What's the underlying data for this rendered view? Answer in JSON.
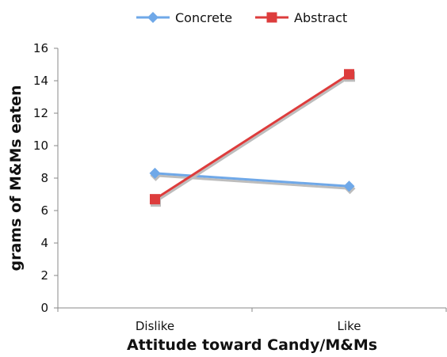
{
  "chart_data": {
    "type": "line",
    "categories": [
      "Dislike",
      "Like"
    ],
    "series": [
      {
        "name": "Concrete",
        "values": [
          8.3,
          7.5
        ],
        "color": "#6fa8e8",
        "marker": "diamond"
      },
      {
        "name": "Abstract",
        "values": [
          6.7,
          14.4
        ],
        "color": "#dd3c3c",
        "marker": "square"
      }
    ],
    "title": "",
    "xlabel": "Attitude toward Candy/M&Ms",
    "ylabel": "grams of M&Ms eaten",
    "ylim": [
      0,
      16
    ],
    "yticks": [
      0,
      2,
      4,
      6,
      8,
      10,
      12,
      14,
      16
    ],
    "grid": false,
    "legend_position": "top"
  }
}
